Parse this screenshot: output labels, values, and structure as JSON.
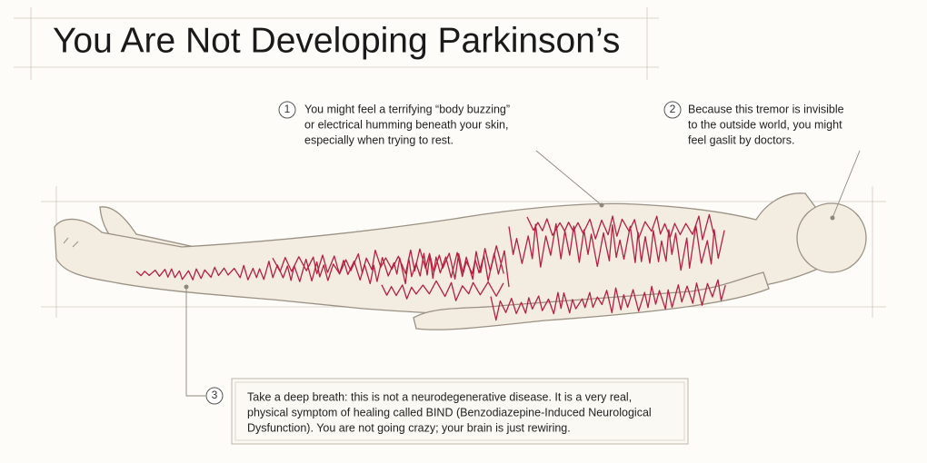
{
  "title": "You Are Not Developing Parkinson’s",
  "annotations": [
    {
      "number": "1",
      "lines": [
        "You might feel a terrifying “body buzzing”",
        "or electrical humming beneath your skin,",
        "especially when trying to rest."
      ]
    },
    {
      "number": "2",
      "lines": [
        "Because this tremor is invisible",
        "to the outside world, you might",
        "feel gaslit by doctors."
      ]
    },
    {
      "number": "3",
      "lines": [
        "Take a deep breath: this is not a neurodegenerative disease. It is a very real,",
        "physical symptom of healing called BIND (Benzodiazepine-Induced Neurological",
        "Dysfunction). You are not going crazy; your brain is just rewiring."
      ]
    }
  ]
}
